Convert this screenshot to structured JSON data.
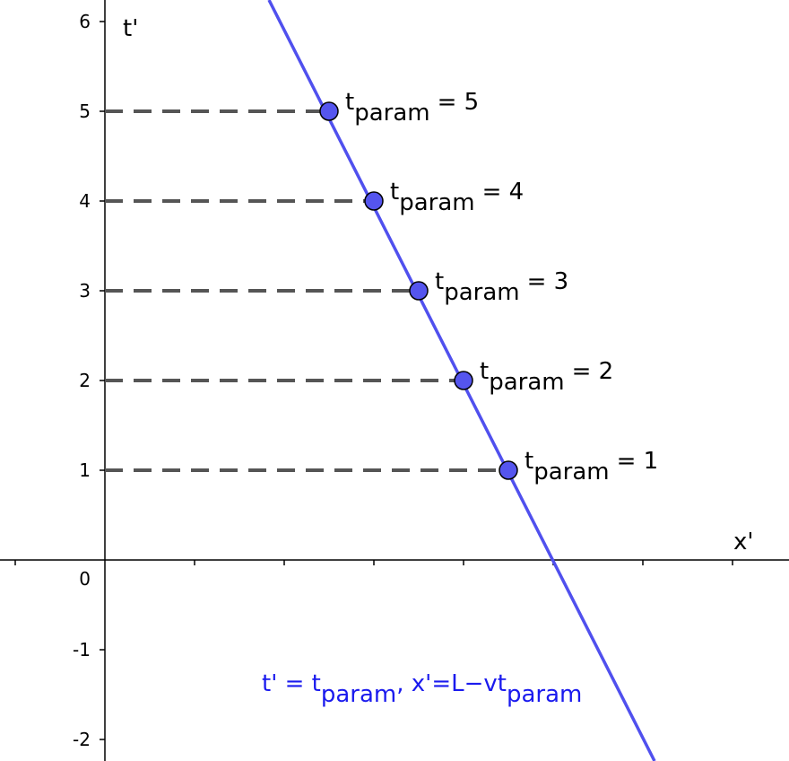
{
  "chart_data": {
    "type": "line",
    "xlabel": "x'",
    "ylabel": "t'",
    "xlim": [
      -1.17,
      7.63
    ],
    "ylim": [
      -2.24,
      6.24
    ],
    "y_ticks": [
      -2,
      -1,
      0,
      1,
      2,
      3,
      4,
      5,
      6
    ],
    "y_tick_labels": [
      "-2",
      "-1",
      "0",
      "1",
      "2",
      "3",
      "4",
      "5",
      "6"
    ],
    "x_ticks": [
      -1,
      1,
      2,
      3,
      4,
      5,
      6,
      7
    ],
    "grid": false,
    "series": [
      {
        "kind": "line",
        "color": "#5050ee",
        "x": [
          1.83,
          6.13
        ],
        "y": [
          6.24,
          -2.24
        ]
      }
    ],
    "points": [
      {
        "x": 4.5,
        "y": 1,
        "t_label": "t",
        "sub_label": "param",
        "value_label": "= 1"
      },
      {
        "x": 4.0,
        "y": 2,
        "t_label": "t",
        "sub_label": "param",
        "value_label": "= 2"
      },
      {
        "x": 3.5,
        "y": 3,
        "t_label": "t",
        "sub_label": "param",
        "value_label": "= 3"
      },
      {
        "x": 3.0,
        "y": 4,
        "t_label": "t",
        "sub_label": "param",
        "value_label": "= 4"
      },
      {
        "x": 2.5,
        "y": 5,
        "t_label": "t",
        "sub_label": "param",
        "value_label": "= 5"
      }
    ],
    "point_color": "#5555ee",
    "dash_color": "#555555",
    "annotation": {
      "part1": "t' = t",
      "sub1": "param",
      "part2": ", x'=L−vt",
      "sub2": "param",
      "color": "#1a1aee"
    }
  }
}
